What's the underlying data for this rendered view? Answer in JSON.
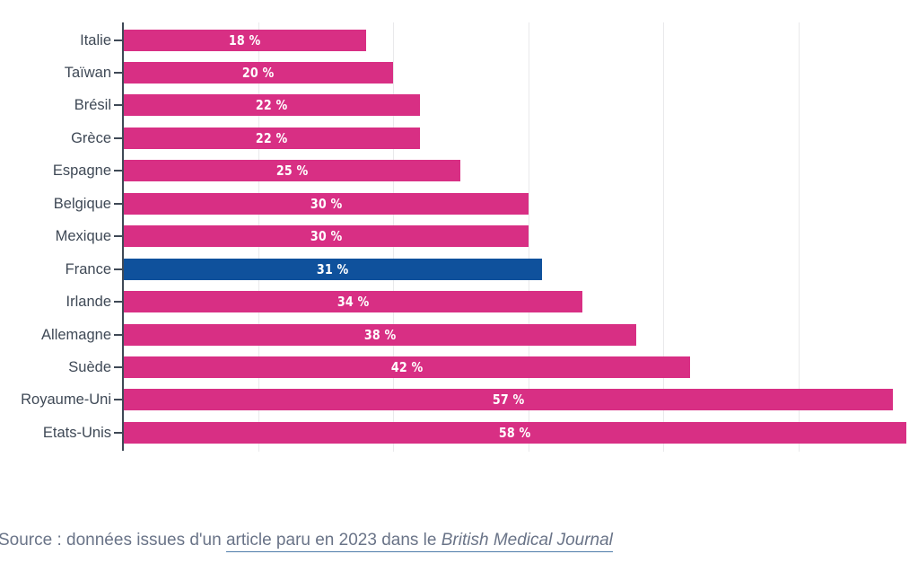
{
  "chart_data": {
    "type": "bar",
    "orientation": "horizontal",
    "title": "",
    "xlabel": "",
    "ylabel": "",
    "categories": [
      "Italie",
      "Taïwan",
      "Brésil",
      "Grèce",
      "Espagne",
      "Belgique",
      "Mexique",
      "France",
      "Irlande",
      "Allemagne",
      "Suède",
      "Royaume-Uni",
      "Etats-Unis"
    ],
    "values": [
      18,
      20,
      22,
      22,
      25,
      30,
      30,
      31,
      34,
      38,
      42,
      57,
      58
    ],
    "value_labels": [
      "18 %",
      "20 %",
      "22 %",
      "22 %",
      "25 %",
      "30 %",
      "30 %",
      "31 %",
      "34 %",
      "38 %",
      "42 %",
      "57 %",
      "58 %"
    ],
    "highlight_category": "France",
    "xlim": [
      0,
      59
    ],
    "gridline_values": [
      10,
      20,
      30,
      40,
      50
    ],
    "grid": true,
    "legend": false,
    "colors": {
      "bar": "#d82f84",
      "highlight_bar": "#0f519c",
      "value_label": "#ffffff",
      "category_label": "#3f4956",
      "axis": "#3f4956",
      "gridline": "#e9e9eb"
    }
  },
  "source": {
    "prefix": "Source : données issues d'un ",
    "link_text": "article paru en 2023 dans le ",
    "link_italic": "British Medical Journal"
  }
}
